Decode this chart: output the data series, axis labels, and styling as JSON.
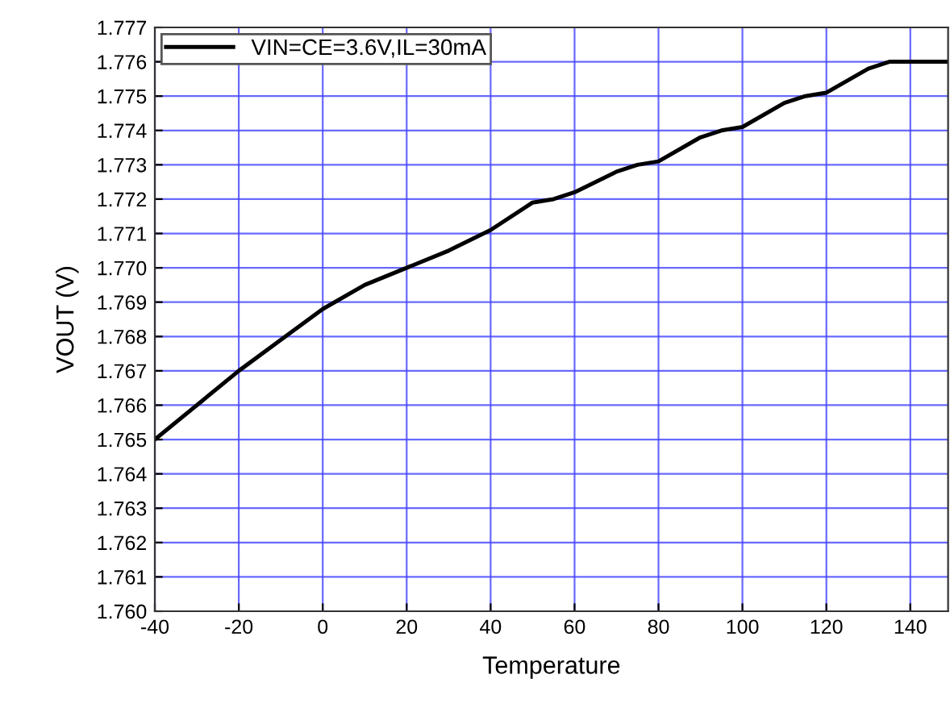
{
  "chart_data": {
    "type": "line",
    "xlabel": "Temperature",
    "ylabel": "VOUT (V)",
    "x": [
      -40,
      -30,
      -20,
      -10,
      0,
      10,
      20,
      30,
      40,
      50,
      55,
      60,
      70,
      75,
      80,
      90,
      95,
      100,
      110,
      115,
      120,
      130,
      135,
      149
    ],
    "series": [
      {
        "name": "VIN=CE=3.6V,IL=30mA",
        "color": "#000000",
        "values": [
          1.765,
          1.766,
          1.767,
          1.7679,
          1.7688,
          1.7695,
          1.77,
          1.7705,
          1.7711,
          1.7719,
          1.772,
          1.7722,
          1.7728,
          1.773,
          1.7731,
          1.7738,
          1.774,
          1.7741,
          1.7748,
          1.775,
          1.7751,
          1.7758,
          1.776,
          1.776
        ]
      }
    ],
    "xlim": [
      -40,
      149
    ],
    "ylim": [
      1.76,
      1.777
    ],
    "xticks": [
      -40,
      -20,
      0,
      20,
      40,
      60,
      80,
      100,
      120,
      140
    ],
    "yticks": [
      {
        "value": 1.76,
        "label": "1.760"
      },
      1.761,
      1.762,
      1.763,
      1.764,
      1.765,
      1.766,
      1.767,
      1.768,
      1.769,
      {
        "value": 1.77,
        "label": "1.770"
      },
      1.771,
      1.772,
      1.773,
      1.774,
      1.775,
      1.776,
      1.777
    ],
    "grid": true,
    "legend": "top left",
    "marker": "none",
    "line_style": "solid"
  }
}
